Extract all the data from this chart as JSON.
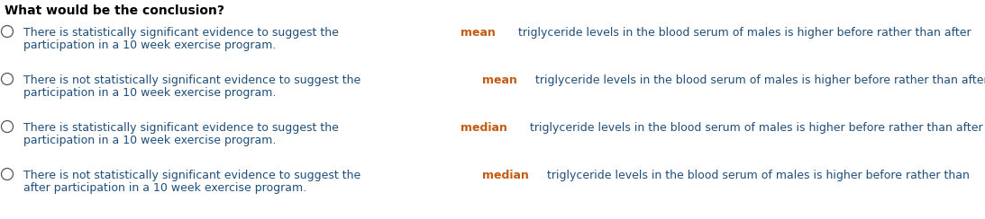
{
  "title": "What would be the conclusion?",
  "title_fontsize": 10,
  "bg_color": "#ffffff",
  "text_color_normal": "#1f4e79",
  "text_color_bold": "#c55a11",
  "text_color_black": "#000000",
  "circle_color": "#555555",
  "options": [
    {
      "line1": [
        {
          "text": "There is statistically significant evidence to suggest the ",
          "bold": false
        },
        {
          "text": "mean",
          "bold": true
        },
        {
          "text": " triglyceride levels in the blood serum of males is higher before rather than after",
          "bold": false
        }
      ],
      "line2": [
        {
          "text": "participation in a 10 week exercise program.",
          "bold": false
        }
      ]
    },
    {
      "line1": [
        {
          "text": "There is not statistically significant evidence to suggest the ",
          "bold": false
        },
        {
          "text": "mean",
          "bold": true
        },
        {
          "text": " triglyceride levels in the blood serum of males is higher before rather than after",
          "bold": false
        }
      ],
      "line2": [
        {
          "text": "participation in a 10 week exercise program.",
          "bold": false
        }
      ]
    },
    {
      "line1": [
        {
          "text": "There is statistically significant evidence to suggest the ",
          "bold": false
        },
        {
          "text": "median",
          "bold": true
        },
        {
          "text": " triglyceride levels in the blood serum of males is higher before rather than after",
          "bold": false
        }
      ],
      "line2": [
        {
          "text": "participation in a 10 week exercise program.",
          "bold": false
        }
      ]
    },
    {
      "line1": [
        {
          "text": "There is not statistically significant evidence to suggest the ",
          "bold": false
        },
        {
          "text": "median",
          "bold": true
        },
        {
          "text": " triglyceride levels in the blood serum of males is higher before rather than",
          "bold": false
        }
      ],
      "line2": [
        {
          "text": "after participation in a 10 week exercise program.",
          "bold": false
        }
      ]
    }
  ],
  "font_family": "DejaVu Sans",
  "option_fontsize": 9.0,
  "figsize": [
    10.93,
    2.44
  ],
  "dpi": 100
}
